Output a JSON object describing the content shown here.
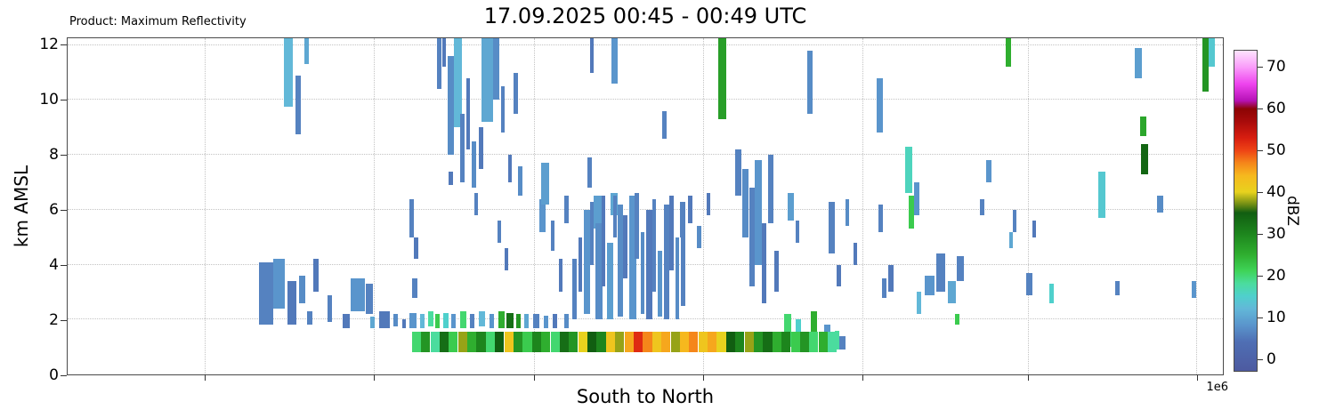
{
  "chart_data": {
    "type": "heatmap",
    "title": "17.09.2025 00:45 - 00:49 UTC",
    "product_label": "Product: Maximum Reflectivity",
    "xlabel": "South to North",
    "ylabel": "km AMSL",
    "x_offset_label": "1e6",
    "grid": true,
    "ylim": [
      0,
      12.25
    ],
    "y_ticks": [
      0,
      2,
      4,
      6,
      8,
      10,
      12
    ],
    "x_gridlines": [
      0.119,
      0.265,
      0.404,
      0.55,
      0.688,
      0.831,
      0.977
    ],
    "colorbar": {
      "label": "dBZ",
      "ticks": [
        0,
        10,
        20,
        30,
        40,
        50,
        60,
        70
      ],
      "vmin": -3,
      "vmax": 74
    },
    "colormap_stops": [
      [
        -3,
        "#4d5aa0"
      ],
      [
        4,
        "#4f6fb4"
      ],
      [
        8,
        "#5a95cc"
      ],
      [
        12,
        "#62b8d8"
      ],
      [
        15,
        "#4fd0cc"
      ],
      [
        18,
        "#4bdc9e"
      ],
      [
        21,
        "#3fd458"
      ],
      [
        25,
        "#2fae2f"
      ],
      [
        30,
        "#1d851d"
      ],
      [
        35,
        "#115e11"
      ],
      [
        37,
        "#6e8c14"
      ],
      [
        40,
        "#e8d21e"
      ],
      [
        44,
        "#f6b81e"
      ],
      [
        47,
        "#f5861a"
      ],
      [
        50,
        "#ee4415"
      ],
      [
        53,
        "#d81e10"
      ],
      [
        57,
        "#a80b0b"
      ],
      [
        60,
        "#8c0404"
      ],
      [
        62,
        "#b612b6"
      ],
      [
        66,
        "#ee44ee"
      ],
      [
        70,
        "#fa9cfa"
      ],
      [
        74,
        "#fde4fd"
      ]
    ],
    "low_band": {
      "y0": 0.8,
      "y1": 1.55,
      "w": 0.0078,
      "cells": [
        [
          0.298,
          20
        ],
        [
          0.306,
          28
        ],
        [
          0.314,
          18
        ],
        [
          0.322,
          33
        ],
        [
          0.33,
          22
        ],
        [
          0.338,
          38
        ],
        [
          0.346,
          25
        ],
        [
          0.354,
          30
        ],
        [
          0.362,
          20
        ],
        [
          0.37,
          35
        ],
        [
          0.378,
          42
        ],
        [
          0.386,
          28
        ],
        [
          0.394,
          22
        ],
        [
          0.402,
          30
        ],
        [
          0.41,
          25
        ],
        [
          0.418,
          20
        ],
        [
          0.426,
          33
        ],
        [
          0.434,
          28
        ],
        [
          0.442,
          40
        ],
        [
          0.45,
          35
        ],
        [
          0.458,
          30
        ],
        [
          0.466,
          42
        ],
        [
          0.474,
          38
        ],
        [
          0.482,
          45
        ],
        [
          0.49,
          52
        ],
        [
          0.498,
          47
        ],
        [
          0.506,
          42
        ],
        [
          0.514,
          45
        ],
        [
          0.522,
          38
        ],
        [
          0.53,
          44
        ],
        [
          0.538,
          47
        ],
        [
          0.546,
          42
        ],
        [
          0.554,
          45
        ],
        [
          0.562,
          40
        ],
        [
          0.57,
          35
        ],
        [
          0.578,
          30
        ],
        [
          0.586,
          38
        ],
        [
          0.594,
          28
        ],
        [
          0.602,
          33
        ],
        [
          0.61,
          25
        ],
        [
          0.618,
          30
        ],
        [
          0.626,
          22
        ],
        [
          0.634,
          28
        ],
        [
          0.642,
          20
        ],
        [
          0.65,
          25
        ],
        [
          0.658,
          18
        ]
      ]
    },
    "segments": [
      [
        0.187,
        9.75,
        12.25,
        12,
        0.008
      ],
      [
        0.197,
        8.75,
        10.9,
        6,
        0.005
      ],
      [
        0.205,
        11.3,
        12.25,
        10,
        0.004
      ],
      [
        0.166,
        1.8,
        4.1,
        6,
        0.012
      ],
      [
        0.178,
        2.4,
        4.2,
        8,
        0.01
      ],
      [
        0.19,
        1.8,
        3.4,
        5,
        0.008
      ],
      [
        0.2,
        2.6,
        3.6,
        7,
        0.006
      ],
      [
        0.207,
        1.8,
        2.3,
        6,
        0.005
      ],
      [
        0.213,
        3.0,
        4.2,
        5,
        0.004
      ],
      [
        0.225,
        1.9,
        2.9,
        6,
        0.004
      ],
      [
        0.238,
        1.7,
        2.2,
        5,
        0.006
      ],
      [
        0.245,
        2.3,
        3.5,
        8,
        0.012
      ],
      [
        0.258,
        2.2,
        3.3,
        6,
        0.006
      ],
      [
        0.262,
        1.7,
        2.1,
        10,
        0.004
      ],
      [
        0.27,
        1.7,
        2.3,
        5,
        0.009
      ],
      [
        0.282,
        1.75,
        2.2,
        7,
        0.004
      ],
      [
        0.29,
        1.7,
        2.0,
        5,
        0.003
      ],
      [
        0.296,
        1.7,
        2.25,
        8,
        0.006
      ],
      [
        0.298,
        2.8,
        3.5,
        6,
        0.005
      ],
      [
        0.305,
        1.7,
        2.2,
        12,
        0.004
      ],
      [
        0.312,
        1.75,
        2.3,
        18,
        0.005
      ],
      [
        0.318,
        1.7,
        2.2,
        22,
        0.004
      ],
      [
        0.325,
        1.7,
        2.25,
        15,
        0.005
      ],
      [
        0.332,
        1.7,
        2.2,
        8,
        0.004
      ],
      [
        0.34,
        1.7,
        2.3,
        20,
        0.005
      ],
      [
        0.348,
        1.7,
        2.2,
        6,
        0.004
      ],
      [
        0.356,
        1.75,
        2.3,
        12,
        0.005
      ],
      [
        0.365,
        1.7,
        2.2,
        8,
        0.004
      ],
      [
        0.373,
        1.7,
        2.3,
        25,
        0.005
      ],
      [
        0.38,
        1.7,
        2.25,
        33,
        0.006
      ],
      [
        0.388,
        1.7,
        2.2,
        28,
        0.004
      ],
      [
        0.395,
        1.7,
        2.2,
        10,
        0.004
      ],
      [
        0.403,
        1.7,
        2.2,
        6,
        0.005
      ],
      [
        0.412,
        1.7,
        2.15,
        8,
        0.004
      ],
      [
        0.42,
        1.7,
        2.2,
        5,
        0.004
      ],
      [
        0.43,
        1.7,
        2.2,
        7,
        0.004
      ],
      [
        0.62,
        1.0,
        2.2,
        20,
        0.006
      ],
      [
        0.63,
        1.2,
        2.0,
        15,
        0.005
      ],
      [
        0.643,
        0.9,
        2.3,
        25,
        0.006
      ],
      [
        0.655,
        1.0,
        1.8,
        8,
        0.005
      ],
      [
        0.664,
        0.9,
        1.6,
        18,
        0.004
      ],
      [
        0.668,
        0.9,
        1.4,
        6,
        0.005
      ],
      [
        0.437,
        2.0,
        4.2,
        6,
        0.0035
      ],
      [
        0.442,
        3.0,
        5.0,
        5,
        0.0035
      ],
      [
        0.447,
        2.2,
        6.0,
        8,
        0.005
      ],
      [
        0.452,
        4.0,
        6.3,
        6,
        0.0035
      ],
      [
        0.455,
        5.3,
        6.5,
        9,
        0.007
      ],
      [
        0.457,
        2.0,
        5.5,
        7,
        0.006
      ],
      [
        0.462,
        3.2,
        6.5,
        5,
        0.0035
      ],
      [
        0.467,
        2.0,
        4.8,
        9,
        0.005
      ],
      [
        0.47,
        5.8,
        6.6,
        10,
        0.006
      ],
      [
        0.472,
        5.0,
        6.5,
        6,
        0.0035
      ],
      [
        0.476,
        2.1,
        6.2,
        7,
        0.005
      ],
      [
        0.481,
        3.5,
        5.8,
        5,
        0.0035
      ],
      [
        0.486,
        2.0,
        6.5,
        8,
        0.006
      ],
      [
        0.491,
        4.2,
        6.6,
        6,
        0.0035
      ],
      [
        0.496,
        2.2,
        5.2,
        7,
        0.0035
      ],
      [
        0.501,
        2.0,
        6.0,
        5,
        0.005
      ],
      [
        0.506,
        3.0,
        6.4,
        6,
        0.0035
      ],
      [
        0.511,
        2.1,
        4.5,
        8,
        0.0035
      ],
      [
        0.516,
        2.0,
        6.2,
        6,
        0.005
      ],
      [
        0.521,
        3.8,
        6.5,
        5,
        0.0035
      ],
      [
        0.526,
        2.0,
        5.0,
        7,
        0.0035
      ],
      [
        0.531,
        2.5,
        6.3,
        6,
        0.0035
      ],
      [
        0.32,
        10.4,
        12.25,
        6,
        0.0035
      ],
      [
        0.324,
        11.2,
        12.25,
        5,
        0.0035
      ],
      [
        0.329,
        8.0,
        11.6,
        7,
        0.005
      ],
      [
        0.334,
        9.0,
        12.25,
        12,
        0.007
      ],
      [
        0.34,
        7.0,
        9.5,
        6,
        0.0035
      ],
      [
        0.345,
        8.2,
        10.8,
        5,
        0.0035
      ],
      [
        0.35,
        6.8,
        8.5,
        7,
        0.0035
      ],
      [
        0.356,
        7.5,
        9.0,
        5,
        0.0035
      ],
      [
        0.358,
        9.2,
        12.25,
        10,
        0.01
      ],
      [
        0.368,
        10.0,
        12.25,
        7,
        0.006
      ],
      [
        0.375,
        8.8,
        10.5,
        6,
        0.0035
      ],
      [
        0.381,
        7.0,
        8.0,
        5,
        0.0035
      ],
      [
        0.386,
        9.5,
        11.0,
        6,
        0.0035
      ],
      [
        0.39,
        6.5,
        7.6,
        7,
        0.0035
      ],
      [
        0.33,
        6.9,
        7.4,
        5,
        0.0035
      ],
      [
        0.352,
        5.8,
        6.6,
        6,
        0.0035
      ],
      [
        0.296,
        5.0,
        6.4,
        6,
        0.0035
      ],
      [
        0.3,
        4.2,
        5.0,
        5,
        0.0035
      ],
      [
        0.372,
        4.8,
        5.6,
        6,
        0.0035
      ],
      [
        0.378,
        3.8,
        4.6,
        5,
        0.0035
      ],
      [
        0.408,
        5.2,
        6.4,
        8,
        0.006
      ],
      [
        0.41,
        6.2,
        7.7,
        9,
        0.007
      ],
      [
        0.418,
        4.5,
        5.6,
        6,
        0.0035
      ],
      [
        0.425,
        3.0,
        4.2,
        5,
        0.0035
      ],
      [
        0.43,
        5.5,
        6.5,
        6,
        0.0035
      ],
      [
        0.45,
        6.8,
        7.9,
        6,
        0.0035
      ],
      [
        0.452,
        11.0,
        12.25,
        5,
        0.0035
      ],
      [
        0.471,
        10.6,
        12.25,
        8,
        0.005
      ],
      [
        0.515,
        8.6,
        9.6,
        6,
        0.0035
      ],
      [
        0.53,
        5.0,
        6.3,
        6,
        0.0035
      ],
      [
        0.537,
        5.5,
        6.5,
        5,
        0.0035
      ],
      [
        0.545,
        4.6,
        5.4,
        7,
        0.0035
      ],
      [
        0.553,
        5.8,
        6.6,
        5,
        0.0035
      ],
      [
        0.563,
        9.3,
        12.25,
        27,
        0.007
      ],
      [
        0.578,
        6.5,
        8.2,
        6,
        0.005
      ],
      [
        0.584,
        5.0,
        7.5,
        7,
        0.005
      ],
      [
        0.59,
        3.2,
        6.8,
        6,
        0.005
      ],
      [
        0.595,
        4.0,
        7.8,
        8,
        0.006
      ],
      [
        0.601,
        2.6,
        5.5,
        5,
        0.0035
      ],
      [
        0.606,
        5.5,
        8.0,
        6,
        0.005
      ],
      [
        0.612,
        3.0,
        4.5,
        5,
        0.0035
      ],
      [
        0.623,
        5.6,
        6.6,
        9,
        0.006
      ],
      [
        0.63,
        4.8,
        5.6,
        6,
        0.0035
      ],
      [
        0.64,
        9.5,
        11.8,
        7,
        0.005
      ],
      [
        0.659,
        4.4,
        6.3,
        6,
        0.005
      ],
      [
        0.666,
        3.2,
        4.0,
        5,
        0.0035
      ],
      [
        0.673,
        5.4,
        6.4,
        7,
        0.0035
      ],
      [
        0.68,
        4.0,
        4.8,
        5,
        0.0035
      ],
      [
        0.7,
        8.8,
        10.8,
        8,
        0.006
      ],
      [
        0.702,
        5.2,
        6.2,
        6,
        0.0035
      ],
      [
        0.705,
        2.8,
        3.5,
        6,
        0.0035
      ],
      [
        0.71,
        3.0,
        4.0,
        5,
        0.005
      ],
      [
        0.725,
        6.6,
        8.3,
        16,
        0.006
      ],
      [
        0.728,
        5.3,
        6.5,
        22,
        0.005
      ],
      [
        0.733,
        5.8,
        7.0,
        8,
        0.004
      ],
      [
        0.735,
        2.2,
        3.0,
        12,
        0.004
      ],
      [
        0.742,
        2.9,
        3.6,
        8,
        0.008
      ],
      [
        0.752,
        3.0,
        4.4,
        6,
        0.008
      ],
      [
        0.762,
        2.6,
        3.4,
        10,
        0.007
      ],
      [
        0.768,
        1.8,
        2.2,
        22,
        0.004
      ],
      [
        0.77,
        3.4,
        4.3,
        6,
        0.006
      ],
      [
        0.79,
        5.8,
        6.4,
        6,
        0.0035
      ],
      [
        0.795,
        7.0,
        7.8,
        8,
        0.005
      ],
      [
        0.812,
        11.2,
        12.25,
        25,
        0.005
      ],
      [
        0.815,
        4.6,
        5.2,
        10,
        0.0035
      ],
      [
        0.818,
        5.2,
        6.0,
        6,
        0.0035
      ],
      [
        0.83,
        2.9,
        3.7,
        6,
        0.005
      ],
      [
        0.835,
        5.0,
        5.6,
        5,
        0.0035
      ],
      [
        0.85,
        2.6,
        3.3,
        15,
        0.004
      ],
      [
        0.892,
        5.7,
        7.4,
        14,
        0.006
      ],
      [
        0.907,
        2.9,
        3.4,
        6,
        0.0035
      ],
      [
        0.924,
        10.8,
        11.9,
        9,
        0.006
      ],
      [
        0.928,
        8.7,
        9.4,
        26,
        0.006
      ],
      [
        0.929,
        7.3,
        8.4,
        34,
        0.006
      ],
      [
        0.943,
        5.9,
        6.5,
        7,
        0.005
      ],
      [
        0.973,
        2.8,
        3.4,
        8,
        0.004
      ],
      [
        0.982,
        10.3,
        12.25,
        28,
        0.006
      ],
      [
        0.988,
        11.2,
        12.25,
        14,
        0.005
      ]
    ]
  }
}
